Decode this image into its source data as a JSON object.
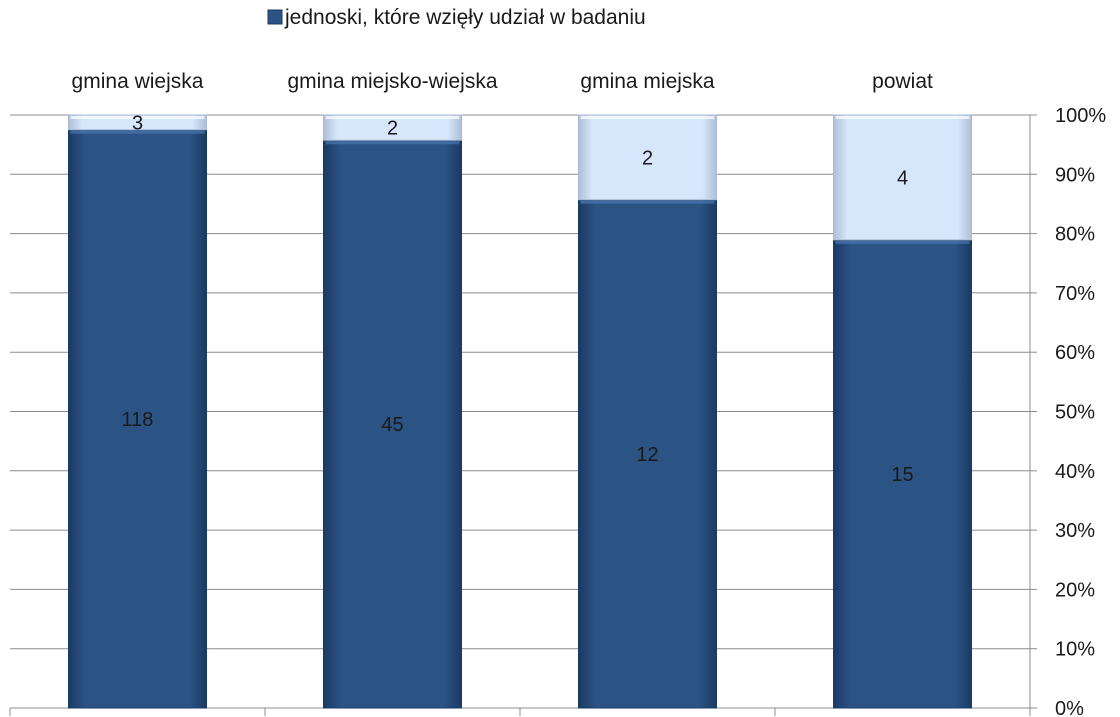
{
  "chart_data": {
    "type": "bar",
    "stacked": "percent",
    "categories": [
      "gmina wiejska",
      "gmina miejsko-wiejska",
      "gmina miejska",
      "powiat"
    ],
    "series": [
      {
        "name": "jednoski, które wzięły udział w badaniu",
        "values": [
          118,
          45,
          12,
          15
        ],
        "color": "#2b5384"
      },
      {
        "values": [
          3,
          2,
          2,
          4
        ],
        "color": "#d6e6fb"
      }
    ],
    "legend": {
      "position": "top",
      "entries": [
        "jednoski, które wzięły udział w badaniu"
      ]
    },
    "y_axis": {
      "position": "right",
      "ticks": [
        "0%",
        "10%",
        "20%",
        "30%",
        "40%",
        "50%",
        "60%",
        "70%",
        "80%",
        "90%",
        "100%"
      ],
      "range": [
        0,
        100
      ]
    },
    "x_axis_labels_position": "top",
    "grid": true,
    "data_labels": true
  }
}
